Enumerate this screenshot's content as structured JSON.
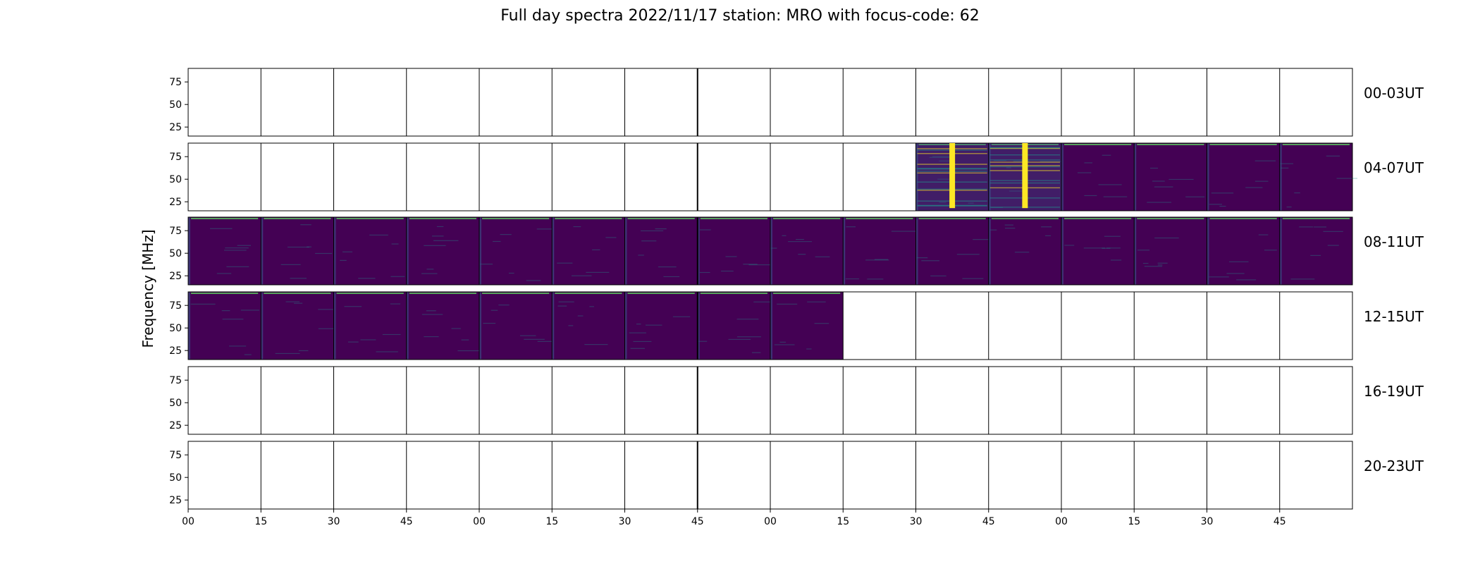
{
  "chart_data": {
    "type": "heatmap",
    "title": "Full day spectra 2022/11/17 station: MRO with focus-code: 62",
    "ylabel": "Frequency [MHz]",
    "xlabel": "",
    "y_ticks": [
      "75",
      "50",
      "25"
    ],
    "y_tick_values": [
      75,
      50,
      25
    ],
    "ylim": [
      15,
      90
    ],
    "x_tick_labels": [
      "00",
      "15",
      "30",
      "45",
      "00",
      "15",
      "30",
      "45",
      "00",
      "15",
      "30",
      "45",
      "00",
      "15",
      "30",
      "45"
    ],
    "panels_per_row": 16,
    "panel_minutes": 15,
    "colormap": [
      "#440154",
      "#3b528b",
      "#21918c",
      "#5ec962",
      "#fde725"
    ],
    "rows": [
      {
        "label": "00-03UT",
        "data_panels": []
      },
      {
        "label": "04-07UT",
        "data_panels": [
          10,
          11,
          12,
          13,
          14,
          15
        ]
      },
      {
        "label": "08-11UT",
        "data_panels": [
          0,
          1,
          2,
          3,
          4,
          5,
          6,
          7,
          8,
          9,
          10,
          11,
          12,
          13,
          14,
          15
        ]
      },
      {
        "label": "12-15UT",
        "data_panels": [
          0,
          1,
          2,
          3,
          4,
          5,
          6,
          7,
          8
        ]
      },
      {
        "label": "16-19UT",
        "data_panels": []
      },
      {
        "label": "20-23UT",
        "data_panels": []
      }
    ],
    "bursts": [
      {
        "row": 1,
        "panel": 10,
        "minute": 7.5,
        "freq_range": [
          18,
          90
        ]
      },
      {
        "row": 1,
        "panel": 11,
        "minute": 7.5,
        "freq_range": [
          18,
          90
        ]
      }
    ],
    "grid": false
  }
}
